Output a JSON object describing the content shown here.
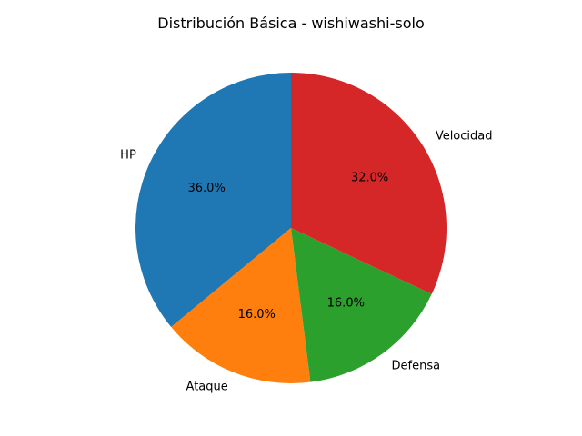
{
  "chart_data": {
    "type": "pie",
    "title": "Distribución Básica - wishiwashi-solo",
    "categories": [
      "HP",
      "Ataque",
      "Defensa",
      "Velocidad"
    ],
    "values": [
      36.0,
      16.0,
      16.0,
      32.0
    ],
    "percent_labels": [
      "36.0%",
      "16.0%",
      "16.0%",
      "32.0%"
    ],
    "colors": [
      "#1f77b4",
      "#ff7f0e",
      "#2ca02c",
      "#d62728"
    ],
    "start_angle": "top",
    "direction": "counterclockwise"
  }
}
